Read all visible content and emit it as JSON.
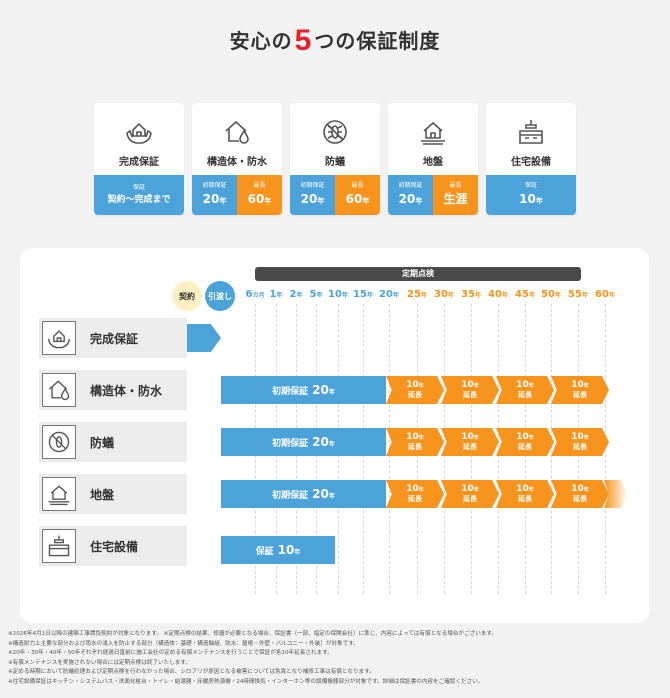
{
  "title": {
    "pre": "安心の",
    "num": "5",
    "post": "つの保証制度"
  },
  "cards": [
    {
      "name": "完成保証",
      "icon": "hands-house-icon",
      "cells": [
        {
          "color": "blue",
          "small": "保証",
          "mid": "契約〜完成まで"
        }
      ]
    },
    {
      "name": "構造体・防水",
      "icon": "house-drop-icon",
      "cells": [
        {
          "color": "blue",
          "small": "初期保証",
          "big": "20",
          "unit": "年"
        },
        {
          "color": "orange",
          "small": "最長",
          "big": "60",
          "unit": "年"
        }
      ]
    },
    {
      "name": "防蟻",
      "icon": "no-termite-icon",
      "cells": [
        {
          "color": "blue",
          "small": "初期保証",
          "big": "20",
          "unit": "年"
        },
        {
          "color": "orange",
          "small": "最長",
          "big": "60",
          "unit": "年"
        }
      ]
    },
    {
      "name": "地盤",
      "icon": "house-ground-icon",
      "cells": [
        {
          "color": "blue",
          "small": "初期保証",
          "big": "20",
          "unit": "年"
        },
        {
          "color": "orange",
          "small": "最長",
          "big": "生涯",
          "unit": ""
        }
      ]
    },
    {
      "name": "住宅設備",
      "icon": "kitchen-icon",
      "cells": [
        {
          "color": "blue",
          "small": "保証",
          "big": "10",
          "unit": "年"
        }
      ]
    }
  ],
  "timeline": {
    "header": "定期点検",
    "keiyaku": "契約",
    "hikiwatashi": "引渡し",
    "ticks": [
      {
        "n": "6",
        "u": "カ月",
        "c": "b"
      },
      {
        "n": "1",
        "u": "年",
        "c": "b"
      },
      {
        "n": "2",
        "u": "年",
        "c": "b"
      },
      {
        "n": "5",
        "u": "年",
        "c": "b"
      },
      {
        "n": "10",
        "u": "年",
        "c": "b"
      },
      {
        "n": "15",
        "u": "年",
        "c": "b"
      },
      {
        "n": "20",
        "u": "年",
        "c": "b"
      },
      {
        "n": "25",
        "u": "年",
        "c": "o"
      },
      {
        "n": "30",
        "u": "年",
        "c": "o"
      },
      {
        "n": "35",
        "u": "年",
        "c": "o"
      },
      {
        "n": "40",
        "u": "年",
        "c": "o"
      },
      {
        "n": "45",
        "u": "年",
        "c": "o"
      },
      {
        "n": "50",
        "u": "年",
        "c": "o"
      },
      {
        "n": "55",
        "u": "年",
        "c": "o"
      },
      {
        "n": "60",
        "u": "年",
        "c": "o"
      }
    ],
    "rows": [
      {
        "label": "完成保証",
        "icon": "hands-house-icon"
      },
      {
        "label": "構造体・防水",
        "icon": "house-drop-icon",
        "bar": "初期保証",
        "bar_num": "20",
        "bar_unit": "年"
      },
      {
        "label": "防蟻",
        "icon": "no-termite-icon",
        "bar": "初期保証",
        "bar_num": "20",
        "bar_unit": "年"
      },
      {
        "label": "地盤",
        "icon": "house-ground-icon",
        "bar": "初期保証",
        "bar_num": "20",
        "bar_unit": "年"
      },
      {
        "label": "住宅設備",
        "icon": "kitchen-icon",
        "bar": "保証",
        "bar_num": "10",
        "bar_unit": "年"
      }
    ],
    "ext": {
      "num": "10",
      "unit": "年",
      "label": "延長"
    }
  },
  "notes": [
    "※2026年4月1日以降の建築工事請負契約が対象となります。 ※定期点検の結果、修繕が必要となる場合、保証書（一部、指定の保険会社）に準じ、内容によっては有償となる場合がございます。",
    "※構造耐力上主要な部分および雨水の浸入を防止する部分（構造体：基礎・構造軸組、防水：屋根・外壁・バルコニー・外装）が対象です。",
    "※20年・30年・40年・50年それぞれ経過日直前に施工会社の定める有償メンテナンスを行うことで保証が各10年延長されます。",
    "※有償メンテナンスを実施されない場合には定期点検は終了いたします。",
    "※定める時期において防蟻処理および定期点検を行わなかった場合、シロアリが原因となる被害については免責となり補修工事は有償となります。",
    "※住宅設備保証はキッチン・システムバス・洗面化粧台・トイレ・給湯器・床暖房熱源機・24時間換気・インターホン等の設備機器部分が対象です。詳細は保証書の内容をご確認ください。"
  ]
}
